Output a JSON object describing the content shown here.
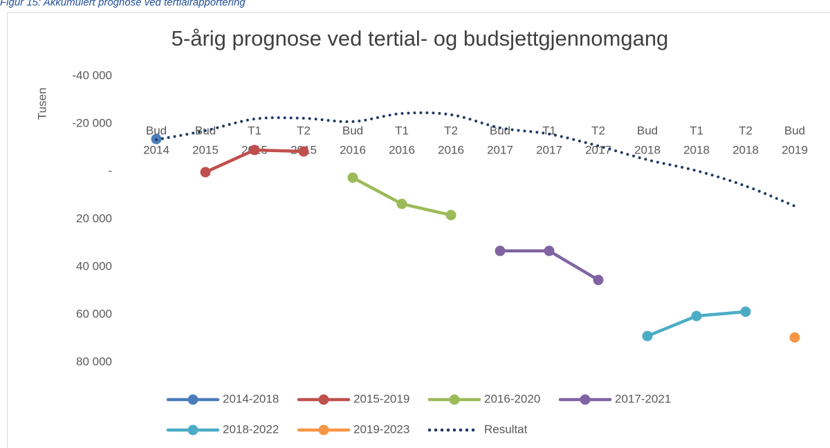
{
  "caption": "Figur 15: Akkumulert prognose ved tertialrapportering",
  "chart_data": {
    "type": "line",
    "title": "5-årig prognose ved tertial- og budsjettgjennomgang",
    "y_label": "Tusen",
    "categories": [
      [
        "Bud",
        "2014"
      ],
      [
        "Bud",
        "2015"
      ],
      [
        "T1",
        "2015"
      ],
      [
        "T2",
        "2015"
      ],
      [
        "Bud",
        "2016"
      ],
      [
        "T1",
        "2016"
      ],
      [
        "T2",
        "2016"
      ],
      [
        "Bud",
        "2017"
      ],
      [
        "T1",
        "2017"
      ],
      [
        "T2",
        "2017"
      ],
      [
        "Bud",
        "2018"
      ],
      [
        "T1",
        "2018"
      ],
      [
        "T2",
        "2018"
      ],
      [
        "Bud",
        "2019"
      ]
    ],
    "ylim": [
      80000,
      -40000
    ],
    "yticks": [
      {
        "value": -40000,
        "label": "-40 000"
      },
      {
        "value": -20000,
        "label": "-20 000"
      },
      {
        "value": 0,
        "label": "-"
      },
      {
        "value": 20000,
        "label": "20 000"
      },
      {
        "value": 40000,
        "label": "40 000"
      },
      {
        "value": 60000,
        "label": "60 000"
      },
      {
        "value": 80000,
        "label": "80 000"
      }
    ],
    "legend": "bottom",
    "series": [
      {
        "name": "2014-2018",
        "color": "#4a7ebb",
        "style": "solid",
        "values": [
          -13600,
          null,
          null,
          null,
          null,
          null,
          null,
          null,
          null,
          null,
          null,
          null,
          null,
          null
        ]
      },
      {
        "name": "2015-2019",
        "color": "#c0504d",
        "style": "solid",
        "values": [
          null,
          300,
          -9000,
          -8400,
          null,
          null,
          null,
          null,
          null,
          null,
          null,
          null,
          null,
          null
        ]
      },
      {
        "name": "2016-2020",
        "color": "#9bbb59",
        "style": "solid",
        "values": [
          null,
          null,
          null,
          null,
          2600,
          13600,
          18300,
          null,
          null,
          null,
          null,
          null,
          null,
          null
        ]
      },
      {
        "name": "2017-2021",
        "color": "#8064a2",
        "style": "solid",
        "values": [
          null,
          null,
          null,
          null,
          null,
          null,
          null,
          33300,
          33300,
          45500,
          null,
          null,
          null,
          null
        ]
      },
      {
        "name": "2018-2022",
        "color": "#4bacc6",
        "style": "solid",
        "values": [
          null,
          null,
          null,
          null,
          null,
          null,
          null,
          null,
          null,
          null,
          69000,
          60600,
          58800,
          null
        ]
      },
      {
        "name": "2019-2023",
        "color": "#f79646",
        "style": "solid",
        "values": [
          null,
          null,
          null,
          null,
          null,
          null,
          null,
          null,
          null,
          null,
          null,
          null,
          null,
          69600
        ]
      },
      {
        "name": "Resultat",
        "color": "#1f3864",
        "style": "dotted",
        "values": [
          -13300,
          -17100,
          -22000,
          -22300,
          -20900,
          -24300,
          -23800,
          -18300,
          -15700,
          -10700,
          -4900,
          -300,
          6100,
          14500
        ]
      }
    ]
  }
}
